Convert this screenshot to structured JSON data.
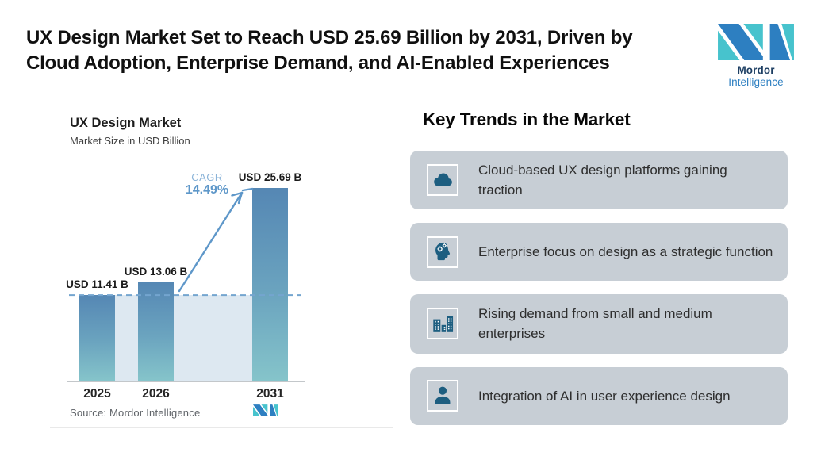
{
  "header": {
    "title_lines": [
      "UX Design Market Set to Reach USD 25.69 Billion by 2031, Driven by",
      "Cloud Adoption, Enterprise Demand, and AI-Enabled Experiences"
    ],
    "brand": {
      "name_bold": "Mordor",
      "name_regular": "Intelligence"
    }
  },
  "chart_data": {
    "type": "bar",
    "title": "UX Design Market",
    "subtitle": "Market Size in USD Billion",
    "categories": [
      "2025",
      "2026",
      "2031"
    ],
    "values": [
      11.41,
      13.06,
      25.69
    ],
    "labels": [
      "USD 11.41 B",
      "USD 13.06 B",
      "USD 25.69 B"
    ],
    "unit": "USD Billion",
    "ylim": [
      0,
      25.69
    ],
    "grid": false,
    "legend": false,
    "annotations": {
      "cagr_label": "CAGR",
      "cagr_value": "14.49%",
      "baseline_reference": "dashed line at 2025 market level"
    },
    "source": "Source: Mordor Intelligence"
  },
  "trends": {
    "heading": "Key Trends in the Market",
    "items": [
      {
        "icon": "cloud-icon",
        "text": "Cloud-based UX design platforms gaining traction"
      },
      {
        "icon": "head-gears-icon",
        "text": "Enterprise focus on design as a strategic function"
      },
      {
        "icon": "buildings-icon",
        "text": "Rising demand from small and medium enterprises"
      },
      {
        "icon": "person-icon",
        "text": "Integration of AI in user experience design"
      }
    ]
  },
  "colors": {
    "brand_blue": "#2d7fc1",
    "brand_teal": "#47c3cd",
    "bar_top": "#5587b4",
    "bar_bottom": "#85c4ca",
    "dashed_line": "#74a5cf",
    "baseline_fill": "#dde8f1",
    "card_bg": "#c7ced5",
    "icon_blue": "#1d5e80"
  }
}
